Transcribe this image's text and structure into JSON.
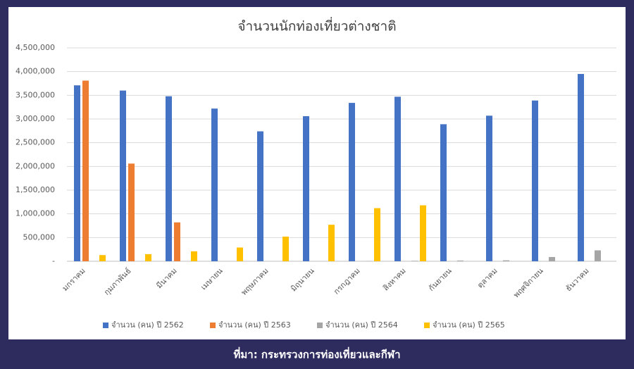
{
  "chart_data": {
    "type": "bar",
    "title": "จำนวนนักท่องเที่ยวต่างชาติ",
    "source": "ที่มา: กระทรวงการท่องเที่ยวและกีฬา",
    "categories": [
      "มกราคม",
      "กุมภาพันธ์",
      "มีนาคม",
      "เมษายน",
      "พฤษภาคม",
      "มิถุนายน",
      "กรกฎาคม",
      "สิงหาคม",
      "กันยายน",
      "ตุลาคม",
      "พฤศจิกายน",
      "ธันวาคม"
    ],
    "series": [
      {
        "name": "จำนวน (คน) ปี 2562",
        "color": "#4472c4",
        "values": [
          3710000,
          3600000,
          3480000,
          3220000,
          2740000,
          3060000,
          3340000,
          3470000,
          2890000,
          3070000,
          3390000,
          3950000
        ]
      },
      {
        "name": "จำนวน (คน) ปี 2563",
        "color": "#ed7d31",
        "values": [
          3810000,
          2060000,
          820000,
          0,
          0,
          0,
          0,
          0,
          0,
          0,
          0,
          0
        ]
      },
      {
        "name": "จำนวน (คน) ปี 2564",
        "color": "#a5a5a5",
        "values": [
          0,
          0,
          0,
          0,
          0,
          0,
          5000,
          10000,
          15000,
          20000,
          90000,
          230000
        ]
      },
      {
        "name": "จำนวน (คน) ปี 2565",
        "color": "#ffc000",
        "values": [
          130000,
          150000,
          210000,
          290000,
          520000,
          770000,
          1120000,
          1180000,
          null,
          null,
          null,
          null
        ]
      }
    ],
    "ylim": [
      0,
      4500000
    ],
    "yticks": [
      {
        "value": 0,
        "label": "-"
      },
      {
        "value": 500000,
        "label": "500,000"
      },
      {
        "value": 1000000,
        "label": "1,000,000"
      },
      {
        "value": 1500000,
        "label": "1,500,000"
      },
      {
        "value": 2000000,
        "label": "2,000,000"
      },
      {
        "value": 2500000,
        "label": "2,500,000"
      },
      {
        "value": 3000000,
        "label": "3,000,000"
      },
      {
        "value": 3500000,
        "label": "3,500,000"
      },
      {
        "value": 4000000,
        "label": "4,000,000"
      },
      {
        "value": 4500000,
        "label": "4,500,000"
      }
    ],
    "grid": true,
    "legend": "bottom"
  }
}
